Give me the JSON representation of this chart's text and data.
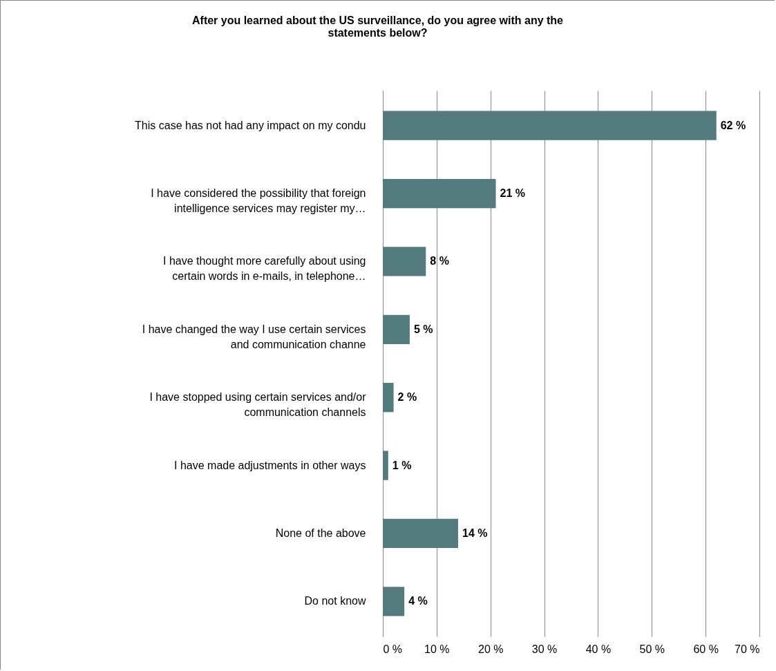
{
  "chart_data": {
    "type": "bar",
    "orientation": "horizontal",
    "title": "After you learned about the US surveillance, do you agree with any the statements below?",
    "categories": [
      "This case has not had any impact on my condu",
      "I have considered the possibility that foreign intelligence services may register my…",
      "I have thought more carefully about using certain words in e-mails, in telephone…",
      "I have changed the way I use certain services and communication channe",
      "I have stopped using certain services and/or communication channels",
      "I have made adjustments in other ways",
      "None of the above",
      "Do not know"
    ],
    "values": [
      62,
      21,
      8,
      5,
      2,
      1,
      14,
      4
    ],
    "value_labels": [
      "62 %",
      "21 %",
      "8 %",
      "5 %",
      "2 %",
      "1 %",
      "14 %",
      "4 %"
    ],
    "color": "#537a7d",
    "xlim": [
      0,
      70
    ],
    "xticks": [
      {
        "value": 0,
        "label": "0 %"
      },
      {
        "value": 10,
        "label": "10 %"
      },
      {
        "value": 20,
        "label": "20 %"
      },
      {
        "value": 30,
        "label": "30 %"
      },
      {
        "value": 40,
        "label": "40 %"
      },
      {
        "value": 50,
        "label": "50 %"
      },
      {
        "value": 60,
        "label": "60 %"
      },
      {
        "value": 70,
        "label": "70 %"
      }
    ],
    "grid": "x"
  }
}
